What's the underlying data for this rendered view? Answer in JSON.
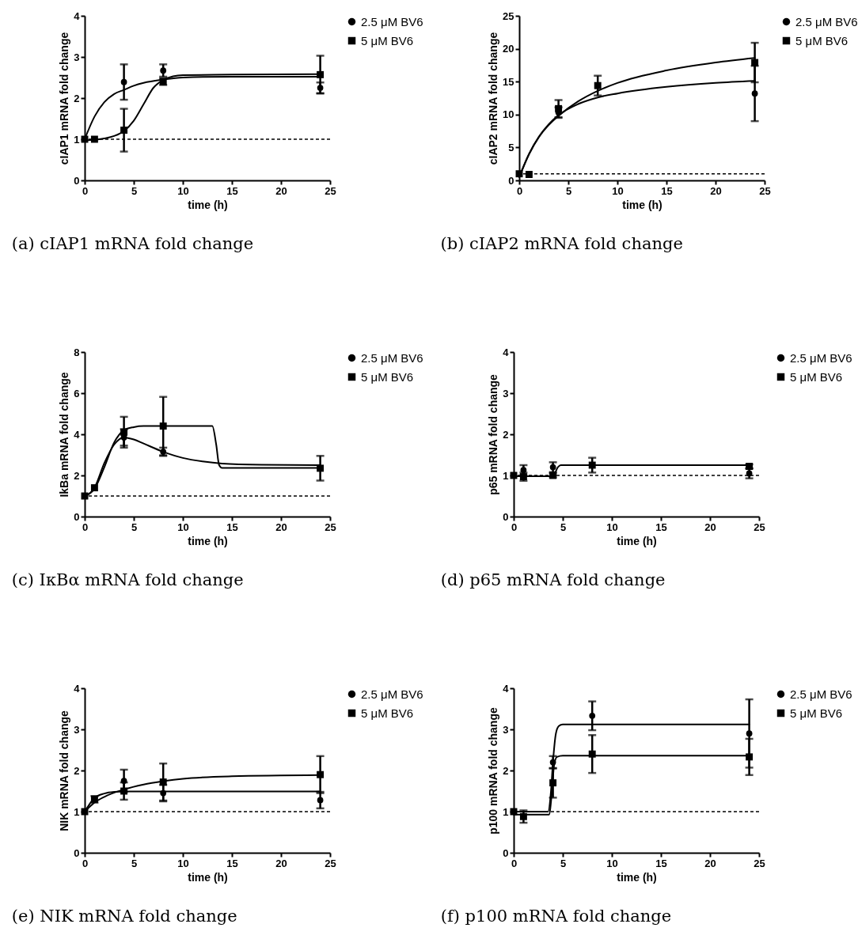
{
  "chart_data": [
    {
      "type": "scatter",
      "title": "(a) cIAP1 mRNA fold change",
      "xlabel": "time (h)",
      "ylabel": "cIAP1 mRNA fold change",
      "x": [
        0,
        1,
        4,
        8,
        24
      ],
      "xlim": [
        0,
        25
      ],
      "xticks": [
        0,
        5,
        10,
        15,
        20,
        25
      ],
      "ylim": [
        0,
        4
      ],
      "yticks": [
        0,
        1,
        2,
        3,
        4
      ],
      "grid": false,
      "legend": "top right",
      "ref_lines": [
        {
          "axis": "y",
          "value": 1,
          "line_style": "dashed"
        }
      ],
      "series": [
        {
          "name": "2.5 μM BV6",
          "type": "scatter",
          "marker": "circle",
          "color": "#000000",
          "values": [
            null,
            null,
            2.39,
            2.67,
            2.25
          ],
          "errors": [
            null,
            null,
            0.43,
            0.15,
            0.13
          ]
        },
        {
          "name": "5 μM BV6",
          "type": "scatter",
          "marker": "square",
          "color": "#000000",
          "values": [
            1.0,
            1.0,
            1.22,
            2.4,
            2.57
          ],
          "errors": [
            null,
            null,
            0.52,
            0.08,
            0.46
          ]
        },
        {
          "type": "line",
          "marker": "none",
          "color": "#000000",
          "x": [
            0,
            1,
            2,
            3,
            4,
            5,
            6,
            8,
            10,
            15,
            24
          ],
          "values": [
            1.0,
            1.55,
            1.9,
            2.1,
            2.2,
            2.3,
            2.37,
            2.45,
            2.5,
            2.52,
            2.52
          ]
        },
        {
          "type": "line",
          "marker": "none",
          "color": "#000000",
          "x": [
            0,
            2,
            3,
            4,
            5,
            6,
            7,
            8,
            9,
            10,
            15,
            24
          ],
          "values": [
            0.97,
            1.02,
            1.08,
            1.2,
            1.45,
            1.85,
            2.25,
            2.44,
            2.53,
            2.56,
            2.57,
            2.58
          ]
        }
      ]
    },
    {
      "type": "scatter",
      "title": "(b) cIAP2 mRNA fold change",
      "xlabel": "time (h)",
      "ylabel": "cIAP2 mRNA fold change",
      "x": [
        0,
        1,
        4,
        8,
        24
      ],
      "xlim": [
        0,
        25
      ],
      "xticks": [
        0,
        5,
        10,
        15,
        20,
        25
      ],
      "ylim": [
        0,
        25
      ],
      "yticks": [
        0,
        5,
        10,
        15,
        20,
        25
      ],
      "grid": false,
      "legend": "top right",
      "ref_lines": [
        {
          "axis": "y",
          "value": 1,
          "line_style": "dashed"
        }
      ],
      "series": [
        {
          "name": "2.5 μM BV6",
          "type": "scatter",
          "marker": "circle",
          "color": "#000000",
          "values": [
            null,
            null,
            10.3,
            null,
            13.2
          ],
          "errors": [
            null,
            null,
            0.8,
            null,
            4.2
          ]
        },
        {
          "name": "5 μM BV6",
          "type": "scatter",
          "marker": "square",
          "color": "#000000",
          "values": [
            1.0,
            0.9,
            10.9,
            14.4,
            17.9
          ],
          "errors": [
            null,
            null,
            1.3,
            1.5,
            3.0
          ]
        },
        {
          "type": "line",
          "marker": "none",
          "color": "#000000",
          "x": [
            0,
            1,
            2,
            3,
            4,
            6,
            8,
            10,
            15,
            20,
            24
          ],
          "values": [
            0.5,
            4,
            6.6,
            8.5,
            9.9,
            11.6,
            12.6,
            13.2,
            14.2,
            14.8,
            15.1
          ]
        },
        {
          "type": "line",
          "marker": "none",
          "color": "#000000",
          "x": [
            0,
            1,
            2,
            3,
            4,
            6,
            8,
            10,
            15,
            20,
            24
          ],
          "values": [
            0.5,
            4,
            6.6,
            8.4,
            9.8,
            12.0,
            13.6,
            14.8,
            16.7,
            17.9,
            18.6
          ]
        }
      ]
    },
    {
      "type": "scatter",
      "title": "(c) IκBα mRNA fold change",
      "xlabel": "time (h)",
      "ylabel": "IkBa mRNA fold change",
      "x": [
        0,
        1,
        4,
        8,
        24
      ],
      "xlim": [
        0,
        25
      ],
      "xticks": [
        0,
        5,
        10,
        15,
        20,
        25
      ],
      "ylim": [
        0,
        8
      ],
      "yticks": [
        0,
        2,
        4,
        6,
        8
      ],
      "grid": false,
      "legend": "top right",
      "ref_lines": [
        {
          "axis": "y",
          "value": 1,
          "line_style": "dashed"
        }
      ],
      "series": [
        {
          "name": "2.5 μM BV6",
          "type": "scatter",
          "marker": "circle",
          "color": "#000000",
          "values": [
            null,
            null,
            3.85,
            3.15,
            null
          ],
          "errors": [
            null,
            null,
            0.4,
            0.2,
            null
          ]
        },
        {
          "name": "5 μM BV6",
          "type": "scatter",
          "marker": "square",
          "color": "#000000",
          "values": [
            1.0,
            1.4,
            4.1,
            4.4,
            2.35
          ],
          "errors": [
            null,
            null,
            0.75,
            1.42,
            0.6
          ]
        },
        {
          "type": "line",
          "marker": "none",
          "color": "#000000",
          "x": [
            0,
            1,
            2,
            3,
            4,
            5,
            6,
            8,
            10,
            12,
            14,
            18,
            24
          ],
          "values": [
            1.0,
            1.4,
            2.6,
            3.5,
            3.85,
            3.75,
            3.55,
            3.15,
            2.85,
            2.68,
            2.58,
            2.52,
            2.5
          ]
        },
        {
          "type": "line",
          "marker": "none",
          "color": "#000000",
          "x": [
            0,
            1,
            2,
            3,
            4,
            5,
            6,
            13,
            13.4,
            13.7,
            14,
            24
          ],
          "values": [
            1.0,
            1.35,
            2.4,
            3.6,
            4.2,
            4.35,
            4.4,
            4.4,
            3.5,
            2.5,
            2.37,
            2.37
          ]
        }
      ]
    },
    {
      "type": "scatter",
      "title": "(d) p65 mRNA fold change",
      "xlabel": "time (h)",
      "ylabel": "p65 mRNA fold change",
      "x": [
        0,
        1,
        4,
        8,
        24
      ],
      "xlim": [
        0,
        25
      ],
      "xticks": [
        0,
        5,
        10,
        15,
        20,
        25
      ],
      "ylim": [
        0,
        4
      ],
      "yticks": [
        0,
        1,
        2,
        3,
        4
      ],
      "grid": false,
      "legend": "top right",
      "ref_lines": [
        {
          "axis": "y",
          "value": 1,
          "line_style": "dashed"
        }
      ],
      "series": [
        {
          "name": "2.5 μM BV6",
          "marker": "circle",
          "color": "#000000",
          "values": [
            null,
            1.13,
            1.2,
            null,
            1.05
          ],
          "errors": [
            null,
            0.12,
            0.12,
            null,
            0.12
          ]
        },
        {
          "name": "5 μM BV6",
          "marker": "square",
          "color": "#000000",
          "values": [
            1.0,
            0.97,
            1.0,
            1.25,
            1.22
          ],
          "errors": [
            null,
            0.1,
            0.05,
            0.18,
            0.05
          ]
        },
        {
          "type": "line",
          "marker": "none",
          "color": "#000000",
          "x": [
            0,
            4,
            4.5,
            4.8,
            24
          ],
          "values": [
            0.98,
            0.98,
            1.2,
            1.25,
            1.25
          ]
        }
      ]
    },
    {
      "type": "scatter",
      "title": "(e) NIK mRNA fold change",
      "xlabel": "time (h)",
      "ylabel": "NIK mRNA fold change",
      "x": [
        0,
        1,
        4,
        8,
        24
      ],
      "xlim": [
        0,
        25
      ],
      "xticks": [
        0,
        5,
        10,
        15,
        20,
        25
      ],
      "ylim": [
        0,
        4
      ],
      "yticks": [
        0,
        1,
        2,
        3,
        4
      ],
      "grid": false,
      "legend": "top right",
      "ref_lines": [
        {
          "axis": "y",
          "value": 1,
          "line_style": "dashed"
        }
      ],
      "series": [
        {
          "name": "2.5 μM BV6",
          "type": "scatter",
          "marker": "circle",
          "color": "#000000",
          "values": [
            null,
            null,
            1.75,
            1.45,
            1.28
          ],
          "errors": [
            null,
            null,
            0.27,
            0.2,
            0.2
          ]
        },
        {
          "name": "5 μM BV6",
          "type": "scatter",
          "marker": "square",
          "color": "#000000",
          "values": [
            1.0,
            1.3,
            1.5,
            1.72,
            1.9
          ],
          "errors": [
            null,
            0.08,
            0.21,
            0.45,
            0.45
          ]
        },
        {
          "type": "line",
          "marker": "none",
          "color": "#000000",
          "x": [
            0,
            1,
            2,
            3,
            4,
            8,
            24
          ],
          "values": [
            1.0,
            1.33,
            1.44,
            1.48,
            1.49,
            1.49,
            1.49
          ]
        },
        {
          "type": "line",
          "marker": "none",
          "color": "#000000",
          "x": [
            0,
            1,
            2,
            4,
            6,
            8,
            10,
            15,
            24
          ],
          "values": [
            1.0,
            1.22,
            1.36,
            1.54,
            1.66,
            1.74,
            1.8,
            1.86,
            1.89
          ]
        }
      ]
    },
    {
      "type": "scatter",
      "title": "(f) p100 mRNA fold change",
      "xlabel": "time (h)",
      "ylabel": "p100 mRNA fold change",
      "x": [
        0,
        1,
        4,
        8,
        24
      ],
      "xlim": [
        0,
        25
      ],
      "xticks": [
        0,
        5,
        10,
        15,
        20,
        25
      ],
      "ylim": [
        0,
        4
      ],
      "yticks": [
        0,
        1,
        2,
        3,
        4
      ],
      "grid": false,
      "legend": "top right",
      "ref_lines": [
        {
          "axis": "y",
          "value": 1,
          "line_style": "dashed"
        }
      ],
      "series": [
        {
          "name": "2.5 μM BV6",
          "type": "scatter",
          "marker": "circle",
          "color": "#000000",
          "values": [
            null,
            null,
            2.2,
            3.33,
            2.9
          ],
          "errors": [
            null,
            null,
            0.15,
            0.35,
            0.83
          ]
        },
        {
          "name": "5 μM BV6",
          "type": "scatter",
          "marker": "square",
          "color": "#000000",
          "values": [
            1.0,
            0.88,
            1.7,
            2.4,
            2.33
          ],
          "errors": [
            null,
            0.15,
            0.36,
            0.46,
            0.44
          ]
        },
        {
          "type": "line",
          "marker": "none",
          "color": "#000000",
          "x": [
            0,
            3.5,
            3.8,
            4,
            4.3,
            4.6,
            5,
            24
          ],
          "values": [
            1.0,
            1.0,
            1.5,
            2.2,
            2.9,
            3.08,
            3.12,
            3.12
          ]
        },
        {
          "type": "line",
          "marker": "none",
          "color": "#000000",
          "x": [
            0,
            3.6,
            3.9,
            4.1,
            4.4,
            5,
            24
          ],
          "values": [
            0.93,
            0.93,
            1.5,
            2.1,
            2.33,
            2.36,
            2.36
          ]
        }
      ]
    }
  ]
}
